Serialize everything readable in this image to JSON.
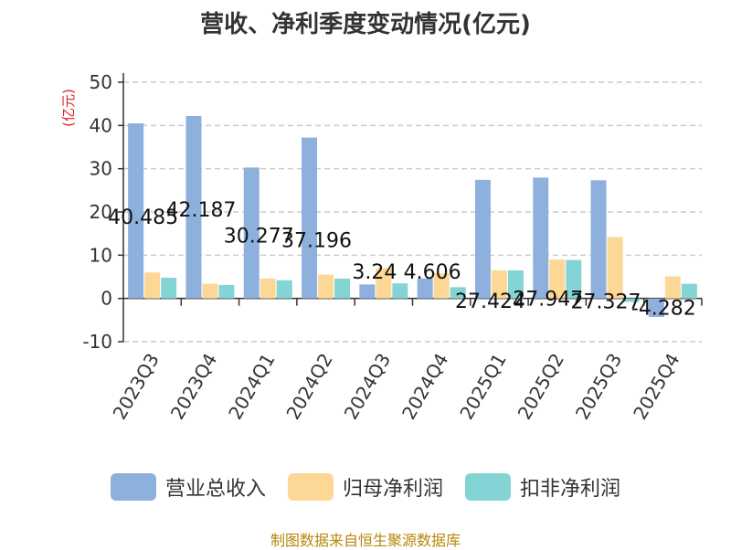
{
  "chart_data": {
    "type": "bar",
    "title": "营收、净利季度变动情况(亿元)",
    "ylabel": "(亿元)",
    "ylim": [
      -10,
      50
    ],
    "yticks": [
      -10,
      0,
      10,
      20,
      30,
      40,
      50
    ],
    "grid": true,
    "legend_position": "bottom",
    "categories": [
      "2023Q3",
      "2023Q4",
      "2024Q1",
      "2024Q2",
      "2024Q3",
      "2024Q4",
      "2025Q1",
      "2025Q2",
      "2025Q3",
      "2025Q4"
    ],
    "series": [
      {
        "name": "营业总收入",
        "color": "#8eb0dd",
        "values": [
          40.485,
          42.187,
          30.277,
          37.196,
          3.24,
          4.606,
          27.424,
          27.947,
          27.327,
          -4.282
        ],
        "labels": [
          "40.485",
          "42.187",
          "30.277",
          "37.196",
          "3.24",
          "4.606",
          "27.424",
          "27.947",
          "27.327",
          "-4.282"
        ]
      },
      {
        "name": "归母净利润",
        "color": "#fdd795",
        "values": [
          6.0,
          3.4,
          4.6,
          5.5,
          7.0,
          5.8,
          6.5,
          9.0,
          14.2,
          5.1
        ]
      },
      {
        "name": "扣非净利润",
        "color": "#84d4d6",
        "values": [
          4.8,
          3.1,
          4.2,
          4.6,
          3.5,
          2.6,
          6.5,
          8.9,
          -0.8,
          3.4
        ]
      }
    ]
  },
  "source": "制图数据来自恒生聚源数据库"
}
